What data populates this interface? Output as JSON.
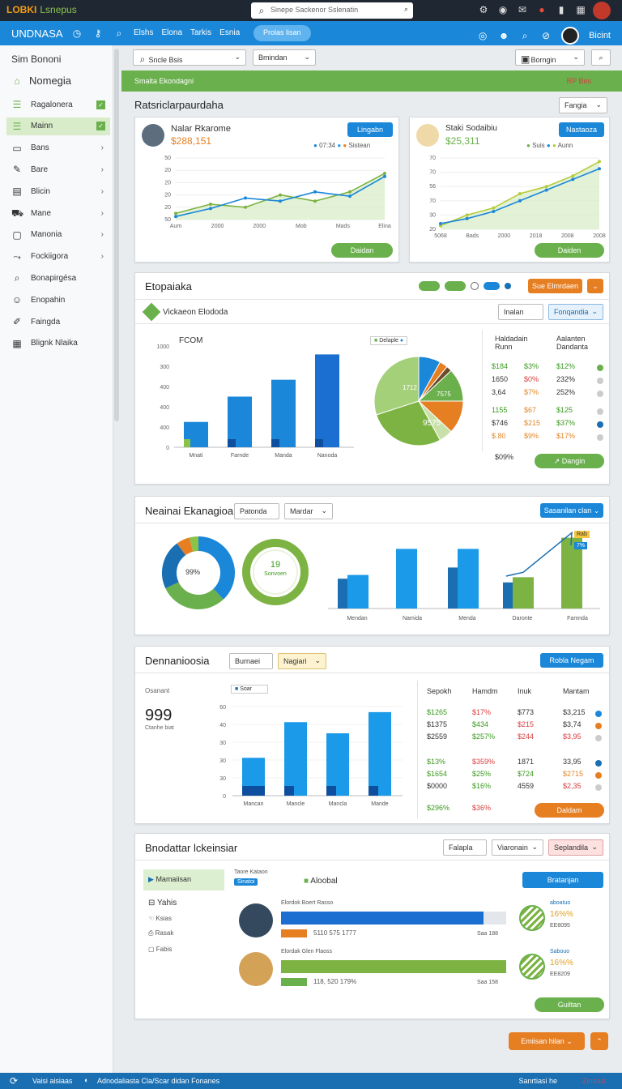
{
  "topbar": {
    "app_logo": "LOBKI",
    "app_sub": "Lsnepus",
    "search_placeholder": "Sinepe Sackenor Sslenatin"
  },
  "navbar": {
    "brand": "UNDNASA",
    "items": [
      "Elshs",
      "Elona",
      "Tarkis",
      "Esnia"
    ],
    "pill": "Prolas lisan",
    "user": "Bicint"
  },
  "sidebar": {
    "title": "Sim Bononi",
    "heading": "Nomegia",
    "items": [
      {
        "label": "Ragalonera",
        "icon": "list-icon",
        "check": true
      },
      {
        "label": "Mainn",
        "icon": "list-icon",
        "check": true
      },
      {
        "label": "Bans",
        "icon": "folder-icon"
      },
      {
        "label": "Bare",
        "icon": "pen-icon"
      },
      {
        "label": "Blicin",
        "icon": "book-icon"
      },
      {
        "label": "Mane",
        "icon": "car-icon"
      },
      {
        "label": "Manonia",
        "icon": "square-icon"
      },
      {
        "label": "Fockiigora",
        "icon": "share-icon"
      },
      {
        "label": "Bonapirgésa",
        "icon": "search-icon"
      },
      {
        "label": "Enopahin",
        "icon": "people-icon"
      },
      {
        "label": "Faingda",
        "icon": "edit-icon"
      },
      {
        "label": "Blignk Nlaika",
        "icon": "table-icon"
      }
    ]
  },
  "filters": {
    "select1": "Sncle Bsis",
    "select2": "Bmindan",
    "select3": "Borngin"
  },
  "greenbar": {
    "left": "Smalta Ekondagni",
    "right": "RP Bes"
  },
  "panel1": {
    "title": "Ratsriclarpaurdaha",
    "dropdown": "Fangia",
    "card1": {
      "name": "Nalar Rkarome",
      "value": "$288,151",
      "button": "Lingabn",
      "legend": [
        "07:34",
        "Sistean"
      ],
      "footer_button": "Daidan",
      "xlabels": [
        "Aum",
        "2000",
        "2000",
        "Mob",
        "Mads",
        "Elina"
      ],
      "ylabels": [
        "50",
        "20",
        "20",
        "20",
        "20",
        "50"
      ]
    },
    "card2": {
      "name": "Staki Sodaibiu",
      "value": "$25,311",
      "button": "Nastaoza",
      "legend": [
        "Suis",
        "Aunn"
      ],
      "footer_button": "Daiden",
      "xlabels": [
        "5068",
        "Bads",
        "2000",
        "2018",
        "2008",
        "2008"
      ],
      "ylabels": [
        "70",
        "70",
        "56",
        "70",
        "30",
        "20"
      ]
    }
  },
  "panel2": {
    "title": "Etopaiaka",
    "btn_orange": "Sue Elmrdaen",
    "sub_title": "Vickaeon Elododa",
    "sel1": "Inalan",
    "sel2": "Fonqandia",
    "bar_title": "FCOM",
    "bars": {
      "categories": [
        "Mnati",
        "Farnde",
        "Manda",
        "Nanoda"
      ],
      "values": [
        120,
        240,
        320,
        440
      ]
    },
    "ylabels": [
      "1000",
      "300",
      "400",
      "400",
      "400",
      "0"
    ],
    "pie_legend": "Delaple",
    "pie_labels": [
      "1712",
      "7575",
      "9575"
    ],
    "table": {
      "headers": [
        "Haldadain Runn",
        "Aalanten Dandanta"
      ],
      "rows": [
        [
          "$184",
          "$3%",
          "$12%"
        ],
        [
          "1650",
          "$0%",
          "232%"
        ],
        [
          "3,64",
          "$7%",
          "252%"
        ],
        [
          "1155",
          "$67",
          "$125"
        ],
        [
          "$746",
          "$215",
          "$37%"
        ],
        [
          "$.80",
          "$9%",
          "$17%"
        ]
      ],
      "footer": "$09%",
      "button": "Dangin"
    }
  },
  "panel3": {
    "title": "Neainai Ekanagioa",
    "sel1": "Patonda",
    "sel2": "Mardar",
    "button": "Sasanilan clan",
    "donut1_label": "99%",
    "donut2_value": "19",
    "donut2_label": "Sonvoen",
    "bars": {
      "categories": [
        "Mendan",
        "Namida",
        "Menda",
        "Daronte",
        "Famnda"
      ],
      "series": [
        {
          "values": [
            45,
            80,
            80,
            42,
            95
          ]
        },
        {
          "values": [
            40,
            0,
            55,
            35,
            0
          ]
        }
      ]
    },
    "badges": [
      "Rab",
      "7%"
    ]
  },
  "panel4": {
    "title": "Dennanioosia",
    "sel1": "Burnaei",
    "sel2": "Nagiari",
    "button": "Robla Negam",
    "stat_label": "Osanant",
    "stat_value": "999",
    "stat_sub": "Ctanhe biat",
    "bar_legend": "Soar",
    "ylabels": [
      "60",
      "40",
      "30",
      "30",
      "30",
      "0"
    ],
    "bars": {
      "categories": [
        "Mancan",
        "Mancle",
        "Mancla",
        "Mande"
      ],
      "values": [
        34,
        66,
        56,
        75
      ]
    },
    "table": {
      "headers": [
        "Sepokh",
        "Hamdm",
        "Inuk",
        "Mantam"
      ],
      "rows": [
        [
          "$1265",
          "$17%",
          "$773",
          "$3,215"
        ],
        [
          "$1375",
          "$434",
          "$215",
          "$3,74"
        ],
        [
          "$2559",
          "$257%",
          "$244",
          "$3,95"
        ],
        [
          "$13%",
          "$359%",
          "1871",
          "33,95"
        ],
        [
          "$1654",
          "$25%",
          "$724",
          "$2715"
        ],
        [
          "$0000",
          "$16%",
          "4559",
          "$2,35"
        ]
      ],
      "footer": [
        "$296%",
        "$36%"
      ],
      "button": "Daldam"
    }
  },
  "panel5": {
    "title": "Bnodattar lckeinsiar",
    "sel1": "Falapla",
    "sel2": "Viaronain",
    "sel3": "Seplandila",
    "left_active": "Mamaiisan",
    "left_items": [
      "Yahis",
      "Ksias",
      "Rasak",
      "Fabis"
    ],
    "meta": "Taore Kataon",
    "tag": "Sinatoi",
    "badge": "Aloobal",
    "button": "Bratanjan",
    "people": [
      {
        "name": "Elordok Boert Rasso",
        "sub": "5110 575 1777",
        "right": "Saa 188",
        "pct": "16%%",
        "pct_label": "aboatuo",
        "pct_sub": "EE8095",
        "progress": 0.9
      },
      {
        "name": "Elordak Glen Flaoss",
        "sub": "118, 520 179%",
        "right": "Saa 158",
        "pct": "16%%",
        "pct_label": "Sabouo",
        "pct_sub": "EE8209",
        "progress": 1.0
      }
    ],
    "button2": "Guiltan"
  },
  "bottom_button": "Emiisan hilan",
  "statusbar": {
    "left": "Vaisi aisiaas",
    "middle": "Adnodaliasta Cla/Scar didan Fonanes",
    "right_a": "Sanrtiasi he",
    "right_b": "Zinoasi"
  },
  "colors": {
    "accent": "#1a87d8",
    "green": "#6ab04c",
    "orange": "#e67e22"
  }
}
